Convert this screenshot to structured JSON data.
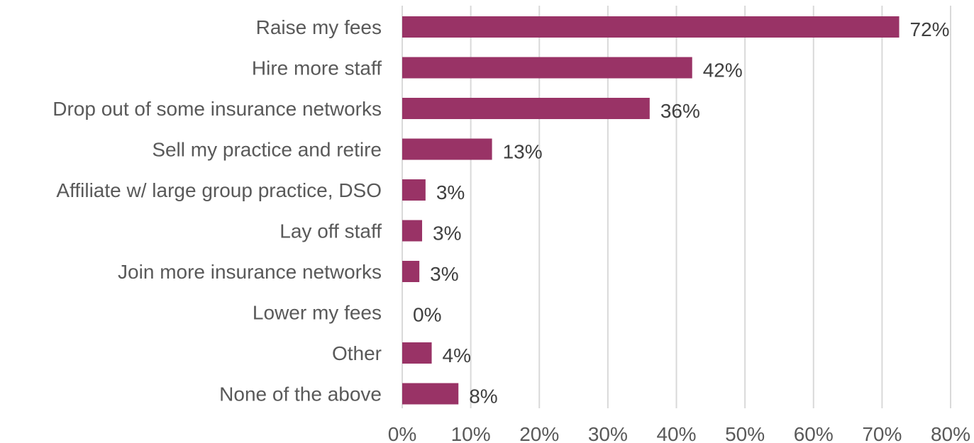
{
  "chart_data": {
    "type": "bar",
    "orientation": "horizontal",
    "categories": [
      "Raise my fees",
      "Hire more staff",
      "Drop out of some insurance networks",
      "Sell my practice and retire",
      "Affiliate w/ large group practice, DSO",
      "Lay off staff",
      "Join more insurance networks",
      "Lower my fees",
      "Other",
      "None of the above"
    ],
    "values": [
      72.5,
      42.3,
      36.1,
      13.1,
      3.4,
      2.9,
      2.5,
      0,
      4.3,
      8.2
    ],
    "data_labels": [
      "72%",
      "42%",
      "36%",
      "13%",
      "3%",
      "3%",
      "3%",
      "0%",
      "4%",
      "8%"
    ],
    "x_ticks": [
      "0%",
      "10%",
      "20%",
      "30%",
      "40%",
      "50%",
      "60%",
      "70%",
      "80%"
    ],
    "xlim": [
      0,
      80
    ],
    "grid": true,
    "legend": "none",
    "title": "",
    "xlabel": "",
    "ylabel": "",
    "bar_color": "#993366",
    "grid_color": "#d9d9d9"
  }
}
